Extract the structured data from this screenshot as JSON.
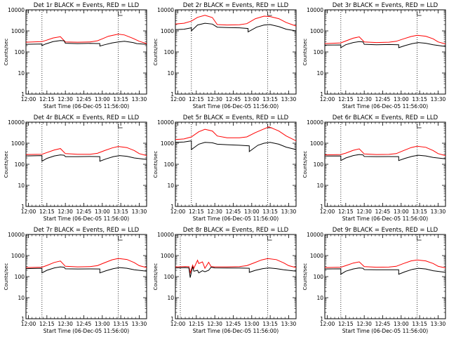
{
  "chart_data": [
    {
      "type": "line",
      "title": "Det 1r BLACK = Events, RED = LLD",
      "xlabel": "Start Time (06-Dec-05 11:56:00)",
      "ylabel": "Counts/sec",
      "xlim": [
        "11:58",
        "13:36"
      ],
      "ylim": [
        1,
        10000
      ],
      "y_scale": "log",
      "x_ticks": [
        "12:00",
        "12:15",
        "12:30",
        "12:45",
        "13:00",
        "13:15",
        "13:30"
      ],
      "y_ticks": [
        "1",
        "10",
        "100",
        "1000",
        "10000"
      ],
      "vlines": [
        "12:11",
        "13:13"
      ],
      "series": [
        {
          "color": "#ff0000",
          "x": [
            "11:58",
            "12:11",
            "12:14",
            "12:20",
            "12:26",
            "12:30",
            "12:40",
            "12:50",
            "12:56",
            "13:00",
            "13:05",
            "13:13",
            "13:18",
            "13:25",
            "13:30",
            "13:36"
          ],
          "y": [
            290,
            310,
            350,
            460,
            530,
            300,
            290,
            300,
            340,
            420,
            560,
            700,
            640,
            440,
            320,
            250
          ]
        },
        {
          "color": "#000000",
          "x": [
            "11:58",
            "12:11",
            "12:11",
            "12:14",
            "12:20",
            "12:26",
            "12:29",
            "12:30",
            "12:40",
            "12:50",
            "12:58",
            "12:58",
            "13:02",
            "13:08",
            "13:13",
            "13:18",
            "13:25",
            "13:28",
            "13:36"
          ],
          "y": [
            230,
            240,
            200,
            240,
            310,
            350,
            340,
            260,
            250,
            255,
            250,
            190,
            220,
            270,
            300,
            320,
            280,
            250,
            230
          ]
        }
      ]
    },
    {
      "type": "line",
      "title": "Det 2r BLACK = Events, RED = LLD",
      "xlabel": "Start Time (06-Dec-05 11:56:00)",
      "ylabel": "Counts/sec",
      "xlim": [
        "11:58",
        "13:36"
      ],
      "ylim": [
        1,
        10000
      ],
      "y_scale": "log",
      "x_ticks": [
        "12:00",
        "12:15",
        "12:30",
        "12:45",
        "13:00",
        "13:15",
        "13:30"
      ],
      "y_ticks": [
        "1",
        "10",
        "100",
        "1000",
        "10000"
      ],
      "vlines": [
        "12:11",
        "13:13"
      ],
      "series": [
        {
          "color": "#ff0000",
          "x": [
            "11:58",
            "12:05",
            "12:11",
            "12:16",
            "12:22",
            "12:28",
            "12:32",
            "12:40",
            "12:50",
            "12:56",
            "13:03",
            "13:10",
            "13:15",
            "13:22",
            "13:28",
            "13:36"
          ],
          "y": [
            2100,
            2300,
            2900,
            4400,
            5500,
            4300,
            2000,
            1900,
            1950,
            2200,
            3800,
            5000,
            4800,
            3800,
            2500,
            1700
          ]
        },
        {
          "color": "#000000",
          "x": [
            "11:58",
            "12:05",
            "12:11",
            "12:11",
            "12:16",
            "12:22",
            "12:28",
            "12:32",
            "12:40",
            "12:50",
            "12:57",
            "12:57",
            "13:04",
            "13:10",
            "13:15",
            "13:22",
            "13:28",
            "13:36"
          ],
          "y": [
            1150,
            1200,
            1400,
            1000,
            1900,
            2300,
            2100,
            1500,
            1450,
            1400,
            1300,
            900,
            1500,
            1900,
            2000,
            1600,
            1200,
            1000
          ]
        }
      ]
    },
    {
      "type": "line",
      "title": "Det 3r BLACK = Events, RED = LLD",
      "xlabel": "Start Time (06-Dec-05 11:56:00)",
      "ylabel": "Counts/sec",
      "xlim": [
        "11:58",
        "13:36"
      ],
      "ylim": [
        1,
        10000
      ],
      "y_scale": "log",
      "x_ticks": [
        "12:00",
        "12:15",
        "12:30",
        "12:45",
        "13:00",
        "13:15",
        "13:30"
      ],
      "y_ticks": [
        "1",
        "10",
        "100",
        "1000",
        "10000"
      ],
      "vlines": [
        "12:11",
        "13:13"
      ],
      "series": [
        {
          "color": "#ff0000",
          "x": [
            "11:58",
            "12:11",
            "12:15",
            "12:21",
            "12:26",
            "12:30",
            "12:40",
            "12:50",
            "12:56",
            "13:02",
            "13:08",
            "13:13",
            "13:20",
            "13:26",
            "13:30",
            "13:36"
          ],
          "y": [
            250,
            270,
            330,
            450,
            520,
            300,
            280,
            290,
            320,
            420,
            540,
            620,
            560,
            420,
            300,
            240
          ]
        },
        {
          "color": "#000000",
          "x": [
            "11:58",
            "12:11",
            "12:11",
            "12:15",
            "12:21",
            "12:26",
            "12:29",
            "12:30",
            "12:40",
            "12:50",
            "12:58",
            "12:58",
            "13:03",
            "13:09",
            "13:14",
            "13:20",
            "13:26",
            "13:36"
          ],
          "y": [
            210,
            215,
            160,
            220,
            280,
            310,
            300,
            230,
            220,
            225,
            220,
            160,
            200,
            250,
            280,
            260,
            220,
            180
          ]
        }
      ]
    },
    {
      "type": "line",
      "title": "Det 4r BLACK = Events, RED = LLD",
      "xlabel": "Start Time (06-Dec-05 11:56:00)",
      "ylabel": "Counts/sec",
      "xlim": [
        "11:58",
        "13:36"
      ],
      "ylim": [
        1,
        10000
      ],
      "y_scale": "log",
      "x_ticks": [
        "12:00",
        "12:15",
        "12:30",
        "12:45",
        "13:00",
        "13:15",
        "13:30"
      ],
      "y_ticks": [
        "1",
        "10",
        "100",
        "1000",
        "10000"
      ],
      "vlines": [
        "12:11",
        "13:13"
      ],
      "series": [
        {
          "color": "#ff0000",
          "x": [
            "11:58",
            "12:11",
            "12:15",
            "12:21",
            "12:26",
            "12:30",
            "12:40",
            "12:50",
            "12:56",
            "13:02",
            "13:08",
            "13:13",
            "13:20",
            "13:26",
            "13:30",
            "13:36"
          ],
          "y": [
            290,
            300,
            360,
            480,
            560,
            320,
            300,
            300,
            330,
            450,
            600,
            700,
            620,
            450,
            320,
            260
          ]
        },
        {
          "color": "#000000",
          "x": [
            "11:58",
            "12:11",
            "12:11",
            "12:15",
            "12:21",
            "12:26",
            "12:29",
            "12:30",
            "12:40",
            "12:50",
            "12:58",
            "12:58",
            "13:03",
            "13:09",
            "13:14",
            "13:20",
            "13:26",
            "13:36"
          ],
          "y": [
            250,
            260,
            140,
            190,
            250,
            280,
            270,
            230,
            230,
            235,
            230,
            140,
            180,
            230,
            260,
            240,
            200,
            170
          ]
        }
      ]
    },
    {
      "type": "line",
      "title": "Det 5r BLACK = Events, RED = LLD",
      "xlabel": "Start Time (06-Dec-05 11:56:00)",
      "ylabel": "Counts/sec",
      "xlim": [
        "11:58",
        "13:36"
      ],
      "ylim": [
        1,
        10000
      ],
      "y_scale": "log",
      "x_ticks": [
        "12:00",
        "12:15",
        "12:30",
        "12:45",
        "13:00",
        "13:15",
        "13:30"
      ],
      "y_ticks": [
        "1",
        "10",
        "100",
        "1000",
        "10000"
      ],
      "vlines": [
        "12:11",
        "13:13"
      ],
      "series": [
        {
          "color": "#ff0000",
          "x": [
            "11:58",
            "12:05",
            "12:11",
            "12:17",
            "12:22",
            "12:28",
            "12:32",
            "12:40",
            "12:50",
            "12:56",
            "13:03",
            "13:10",
            "13:14",
            "13:22",
            "13:28",
            "13:36"
          ],
          "y": [
            1500,
            1600,
            2000,
            3500,
            4600,
            3800,
            2200,
            1800,
            1800,
            2000,
            3200,
            4800,
            6000,
            3800,
            2200,
            1300
          ]
        },
        {
          "color": "#000000",
          "x": [
            "11:58",
            "12:05",
            "12:11",
            "12:11",
            "12:17",
            "12:22",
            "12:28",
            "12:32",
            "12:40",
            "12:50",
            "12:58",
            "12:58",
            "13:05",
            "13:10",
            "13:15",
            "13:22",
            "13:28",
            "13:36"
          ],
          "y": [
            1100,
            1150,
            1300,
            500,
            900,
            1100,
            1050,
            900,
            850,
            800,
            750,
            400,
            800,
            1000,
            1100,
            900,
            650,
            500
          ]
        }
      ]
    },
    {
      "type": "line",
      "title": "Det 6r BLACK = Events, RED = LLD",
      "xlabel": "Start Time (06-Dec-05 11:56:00)",
      "ylabel": "Counts/sec",
      "xlim": [
        "11:58",
        "13:36"
      ],
      "ylim": [
        1,
        10000
      ],
      "y_scale": "log",
      "x_ticks": [
        "12:00",
        "12:15",
        "12:30",
        "12:45",
        "13:00",
        "13:15",
        "13:30"
      ],
      "y_ticks": [
        "1",
        "10",
        "100",
        "1000",
        "10000"
      ],
      "vlines": [
        "12:11",
        "13:13"
      ],
      "series": [
        {
          "color": "#ff0000",
          "x": [
            "11:58",
            "12:11",
            "12:15",
            "12:21",
            "12:26",
            "12:30",
            "12:40",
            "12:50",
            "12:56",
            "13:02",
            "13:08",
            "13:13",
            "13:20",
            "13:26",
            "13:30",
            "13:36"
          ],
          "y": [
            280,
            290,
            340,
            460,
            540,
            310,
            290,
            295,
            320,
            450,
            620,
            720,
            640,
            450,
            320,
            260
          ]
        },
        {
          "color": "#000000",
          "x": [
            "11:58",
            "12:11",
            "12:11",
            "12:15",
            "12:21",
            "12:26",
            "12:29",
            "12:30",
            "12:40",
            "12:50",
            "12:58",
            "12:58",
            "13:03",
            "13:09",
            "13:14",
            "13:20",
            "13:26",
            "13:36"
          ],
          "y": [
            245,
            250,
            150,
            200,
            260,
            290,
            280,
            235,
            230,
            232,
            230,
            150,
            190,
            240,
            270,
            250,
            210,
            180
          ]
        }
      ]
    },
    {
      "type": "line",
      "title": "Det 7r BLACK = Events, RED = LLD",
      "xlabel": "Start Time (06-Dec-05 11:56:00)",
      "ylabel": "Counts/sec",
      "xlim": [
        "11:58",
        "13:36"
      ],
      "ylim": [
        1,
        10000
      ],
      "y_scale": "log",
      "x_ticks": [
        "12:00",
        "12:15",
        "12:30",
        "12:45",
        "13:00",
        "13:15",
        "13:30"
      ],
      "y_ticks": [
        "1",
        "10",
        "100",
        "1000",
        "10000"
      ],
      "vlines": [
        "12:11",
        "13:13"
      ],
      "series": [
        {
          "color": "#ff0000",
          "x": [
            "11:58",
            "12:11",
            "12:15",
            "12:21",
            "12:26",
            "12:30",
            "12:40",
            "12:50",
            "12:56",
            "13:02",
            "13:08",
            "13:13",
            "13:20",
            "13:26",
            "13:30",
            "13:36"
          ],
          "y": [
            270,
            280,
            340,
            470,
            550,
            310,
            290,
            300,
            330,
            460,
            630,
            730,
            650,
            460,
            330,
            270
          ]
        },
        {
          "color": "#000000",
          "x": [
            "11:58",
            "12:11",
            "12:11",
            "12:15",
            "12:21",
            "12:26",
            "12:29",
            "12:30",
            "12:40",
            "12:50",
            "12:58",
            "12:58",
            "13:03",
            "13:09",
            "13:14",
            "13:20",
            "13:26",
            "13:36"
          ],
          "y": [
            240,
            250,
            150,
            200,
            260,
            290,
            280,
            235,
            230,
            232,
            230,
            150,
            190,
            240,
            270,
            250,
            210,
            180
          ]
        }
      ]
    },
    {
      "type": "line",
      "title": "Det 8r BLACK = Events, RED = LLD",
      "xlabel": "Start Time (06-Dec-05 11:56:00)",
      "ylabel": "Counts/sec",
      "xlim": [
        "11:58",
        "13:36"
      ],
      "ylim": [
        1,
        10000
      ],
      "y_scale": "log",
      "x_ticks": [
        "12:00",
        "12:15",
        "12:30",
        "12:45",
        "13:00",
        "13:15",
        "13:30"
      ],
      "y_ticks": [
        "1",
        "10",
        "100",
        "1000",
        "10000"
      ],
      "vlines": [
        "12:02",
        "13:13"
      ],
      "series": [
        {
          "color": "#ff0000",
          "x": [
            "11:58",
            "12:06",
            "12:09",
            "12:10",
            "12:12",
            "12:13",
            "12:16",
            "12:17",
            "12:20",
            "12:22",
            "12:25",
            "12:27",
            "12:30",
            "12:40",
            "12:50",
            "12:56",
            "13:02",
            "13:08",
            "13:13",
            "13:20",
            "13:26",
            "13:30",
            "13:36"
          ],
          "y": [
            290,
            300,
            300,
            150,
            350,
            250,
            600,
            420,
            500,
            250,
            480,
            300,
            290,
            290,
            300,
            330,
            450,
            620,
            720,
            640,
            450,
            330,
            270
          ]
        },
        {
          "color": "#000000",
          "x": [
            "11:58",
            "12:06",
            "12:09",
            "12:10",
            "12:12",
            "12:13",
            "12:16",
            "12:17",
            "12:20",
            "12:22",
            "12:25",
            "12:27",
            "12:30",
            "12:40",
            "12:50",
            "12:58",
            "12:58",
            "13:03",
            "13:09",
            "13:14",
            "13:20",
            "13:26",
            "13:36"
          ],
          "y": [
            260,
            270,
            260,
            90,
            300,
            180,
            200,
            150,
            190,
            170,
            200,
            280,
            260,
            255,
            255,
            250,
            160,
            200,
            240,
            260,
            240,
            210,
            180
          ]
        }
      ]
    },
    {
      "type": "line",
      "title": "Det 9r BLACK = Events, RED = LLD",
      "xlabel": "Start Time (06-Dec-05 11:56:00)",
      "ylabel": "Counts/sec",
      "xlim": [
        "11:58",
        "13:36"
      ],
      "ylim": [
        1,
        10000
      ],
      "y_scale": "log",
      "x_ticks": [
        "12:00",
        "12:15",
        "12:30",
        "12:45",
        "13:00",
        "13:15",
        "13:30"
      ],
      "y_ticks": [
        "1",
        "10",
        "100",
        "1000",
        "10000"
      ],
      "vlines": [
        "12:11",
        "13:13"
      ],
      "series": [
        {
          "color": "#ff0000",
          "x": [
            "11:58",
            "12:11",
            "12:15",
            "12:21",
            "12:26",
            "12:30",
            "12:40",
            "12:50",
            "12:56",
            "13:02",
            "13:08",
            "13:13",
            "13:20",
            "13:26",
            "13:30",
            "13:36"
          ],
          "y": [
            270,
            280,
            330,
            440,
            500,
            300,
            280,
            285,
            310,
            420,
            560,
            620,
            560,
            420,
            310,
            260
          ]
        },
        {
          "color": "#000000",
          "x": [
            "11:58",
            "12:11",
            "12:11",
            "12:15",
            "12:21",
            "12:26",
            "12:29",
            "12:30",
            "12:40",
            "12:50",
            "12:58",
            "12:58",
            "13:03",
            "13:09",
            "13:14",
            "13:20",
            "13:26",
            "13:36"
          ],
          "y": [
            230,
            235,
            130,
            180,
            230,
            260,
            250,
            215,
            210,
            212,
            210,
            130,
            170,
            220,
            250,
            230,
            190,
            160
          ]
        }
      ]
    }
  ]
}
